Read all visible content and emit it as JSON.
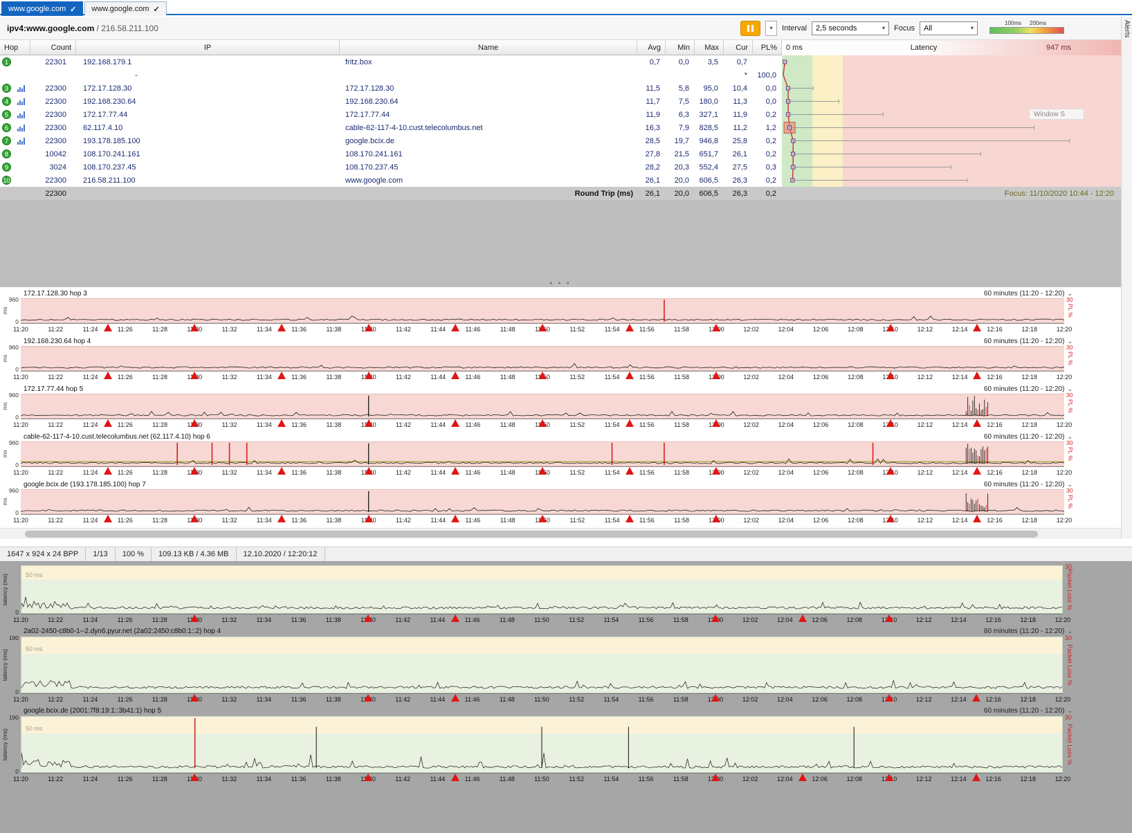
{
  "window": {
    "alerts_label": "Alerts",
    "ghost_text": "Window S"
  },
  "tabs": [
    {
      "label": "www.google.com"
    },
    {
      "label": "www.google.com"
    }
  ],
  "header": {
    "target": "ipv4:www.google.com",
    "separator": " / ",
    "ip": "216.58.211.100",
    "interval_label": "Interval",
    "interval_value": "2,5 seconds",
    "focus_label": "Focus",
    "focus_value": "All",
    "legend_100": "100ms",
    "legend_200": "200ms"
  },
  "table": {
    "columns": [
      "Hop",
      "Count",
      "IP",
      "Name",
      "Avg",
      "Min",
      "Max",
      "Cur",
      "PL%"
    ],
    "latency_header": {
      "min": "0 ms",
      "title": "Latency",
      "max": "947 ms"
    },
    "rows": [
      {
        "hop": "1",
        "count": "22301",
        "ip": "192.168.179.1",
        "name": "fritz.box",
        "avg": "0,7",
        "min": "0,0",
        "max": "3,5",
        "cur": "0,7",
        "pl": "",
        "avg_v": 0.7,
        "min_v": 0,
        "max_v": 3.5,
        "badge": true,
        "chart": false,
        "selected": false
      },
      {
        "hop": "",
        "count": "",
        "ip": "-",
        "name": "",
        "avg": "",
        "min": "",
        "max": "",
        "cur": "*",
        "pl": "100,0",
        "avg_v": null,
        "min_v": null,
        "max_v": null,
        "badge": false,
        "chart": false,
        "selected": false
      },
      {
        "hop": "3",
        "count": "22300",
        "ip": "172.17.128.30",
        "name": "172.17.128.30",
        "avg": "11,5",
        "min": "5,8",
        "max": "95,0",
        "cur": "10,4",
        "pl": "0,0",
        "avg_v": 11.5,
        "min_v": 5.8,
        "max_v": 95,
        "badge": true,
        "chart": true,
        "selected": false
      },
      {
        "hop": "4",
        "count": "22300",
        "ip": "192.168.230.64",
        "name": "192.168.230.64",
        "avg": "11,7",
        "min": "7,5",
        "max": "180,0",
        "cur": "11,3",
        "pl": "0,0",
        "avg_v": 11.7,
        "min_v": 7.5,
        "max_v": 180,
        "badge": true,
        "chart": true,
        "selected": false
      },
      {
        "hop": "5",
        "count": "22300",
        "ip": "172.17.77.44",
        "name": "172.17.77.44",
        "avg": "11,9",
        "min": "6,3",
        "max": "327,1",
        "cur": "11,9",
        "pl": "0,2",
        "avg_v": 11.9,
        "min_v": 6.3,
        "max_v": 327.1,
        "badge": true,
        "chart": true,
        "selected": false
      },
      {
        "hop": "6",
        "count": "22300",
        "ip": "62.117.4.10",
        "name": "cable-62-117-4-10.cust.telecolumbus.net",
        "avg": "16,3",
        "min": "7,9",
        "max": "828,5",
        "cur": "11,2",
        "pl": "1,2",
        "avg_v": 16.3,
        "min_v": 7.9,
        "max_v": 828.5,
        "badge": true,
        "chart": true,
        "selected": true
      },
      {
        "hop": "7",
        "count": "22300",
        "ip": "193.178.185.100",
        "name": "google.bcix.de",
        "avg": "28,5",
        "min": "19,7",
        "max": "946,8",
        "cur": "25,8",
        "pl": "0,2",
        "avg_v": 28.5,
        "min_v": 19.7,
        "max_v": 946.8,
        "badge": true,
        "chart": true,
        "selected": false
      },
      {
        "hop": "8",
        "count": "10042",
        "ip": "108.170.241.161",
        "name": "108.170.241.161",
        "avg": "27,8",
        "min": "21,5",
        "max": "651,7",
        "cur": "26,1",
        "pl": "0,2",
        "avg_v": 27.8,
        "min_v": 21.5,
        "max_v": 651.7,
        "badge": true,
        "chart": false,
        "selected": false
      },
      {
        "hop": "9",
        "count": "3024",
        "ip": "108.170.237.45",
        "name": "108.170.237.45",
        "avg": "28,2",
        "min": "20,3",
        "max": "552,4",
        "cur": "27,5",
        "pl": "0,3",
        "avg_v": 28.2,
        "min_v": 20.3,
        "max_v": 552.4,
        "badge": true,
        "chart": false,
        "selected": false
      },
      {
        "hop": "10",
        "count": "22300",
        "ip": "216.58.211.100",
        "name": "www.google.com",
        "avg": "26,1",
        "min": "20,0",
        "max": "606,5",
        "cur": "26,3",
        "pl": "0,2",
        "avg_v": 26.1,
        "min_v": 20,
        "max_v": 606.5,
        "badge": true,
        "chart": false,
        "selected": false
      }
    ],
    "round_trip": {
      "count": "22300",
      "label": "Round Trip (ms)",
      "avg": "26,1",
      "min": "20,0",
      "max": "606,5",
      "cur": "26,3",
      "pl": "0,2",
      "focus": "Focus: 11/10/2020 10:44 - 12:20"
    }
  },
  "latency_scale": {
    "min_ms": 0,
    "max_ms": 947
  },
  "time_labels": [
    "11:20",
    "11:22",
    "11:24",
    "11:26",
    "11:28",
    "11:30",
    "11:32",
    "11:34",
    "11:36",
    "11:38",
    "11:40",
    "11:42",
    "11:44",
    "11:46",
    "11:48",
    "11:50",
    "11:52",
    "11:54",
    "11:56",
    "11:58",
    "12:00",
    "12:02",
    "12:04",
    "12:06",
    "12:08",
    "12:10",
    "12:12",
    "12:14",
    "12:16",
    "12:18",
    "12:20"
  ],
  "timelines_top": {
    "range_label": "60 minutes (11:20 - 12:20)",
    "y_max": "960",
    "y_min": "0",
    "y_unit": "ms",
    "pl_max": "30",
    "pl_label": "PL %",
    "triangle_times": [
      "11:25",
      "11:30",
      "11:35",
      "11:40",
      "11:45",
      "11:50",
      "11:55",
      "12:00",
      "12:10",
      "12:15"
    ],
    "charts": [
      {
        "title": "172.17.128.30 hop 3",
        "red_lines": [
          "11:57"
        ],
        "black_spikes": [],
        "clusters": [],
        "band": false
      },
      {
        "title": "192.168.230.64 hop 4",
        "red_lines": [],
        "black_spikes": [],
        "clusters": [],
        "band": false
      },
      {
        "title": "172.17.77.44 hop 5",
        "red_lines": [],
        "black_spikes": [
          "11:40"
        ],
        "clusters": [
          "12:15"
        ],
        "band": false
      },
      {
        "title": "cable-62-117-4-10.cust.telecolumbus.net (62.117.4.10) hop 6",
        "red_lines": [
          "11:29",
          "11:31",
          "11:32",
          "11:33",
          "11:54",
          "11:57",
          "12:09"
        ],
        "black_spikes": [
          "11:40"
        ],
        "clusters": [
          "12:15"
        ],
        "band": true
      },
      {
        "title": "google.bcix.de (193.178.185.100) hop 7",
        "red_lines": [],
        "black_spikes": [
          "11:40"
        ],
        "clusters": [
          "12:15"
        ],
        "band": false
      }
    ]
  },
  "status_bar": {
    "items": [
      "1647 x 924 x 24 BPP",
      "1/13",
      "100 %",
      "109.13 KB / 4.36 MB",
      "12.10.2020 / 12:20:12"
    ]
  },
  "timelines_bottom": {
    "range_label": "60 minutes (11:20 - 12:20)",
    "grid_label": "50 ms",
    "y_axis_label": "latency (ms)",
    "y_min": "0",
    "pl_max": "30",
    "pl_label": "Packet Loss %",
    "charts": [
      {
        "title": "",
        "y_max": "",
        "triangles": [
          "11:30",
          "11:40",
          "11:45",
          "12:00",
          "12:05",
          "12:10"
        ],
        "red_lines": [],
        "tall_spikes": []
      },
      {
        "title": "2a02-2450-c8b0-1--2.dyn6.pyur.net (2a02:2450:c8b0:1::2) hop 4",
        "y_max": "190",
        "triangles": [
          "11:30",
          "11:40",
          "11:45",
          "12:00",
          "12:10",
          "12:15"
        ],
        "red_lines": [],
        "tall_spikes": []
      },
      {
        "title": "google.bcix.de (2001:7f8:19:1::3b41:1) hop 5",
        "y_max": "190",
        "triangles": [
          "11:30",
          "11:40",
          "11:45",
          "12:00",
          "12:05",
          "12:10",
          "12:15"
        ],
        "red_lines": [
          "11:30"
        ],
        "tall_spikes": [
          "11:37",
          "11:50",
          "11:55",
          "12:08"
        ]
      }
    ]
  }
}
